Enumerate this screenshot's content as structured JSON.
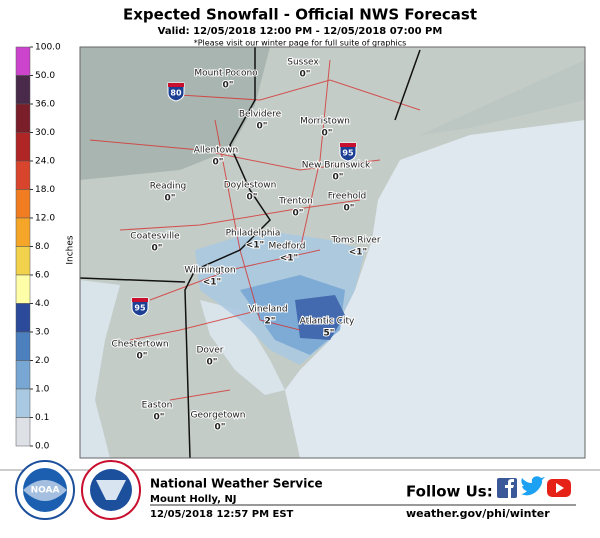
{
  "header": {
    "title": "Expected Snowfall - Official NWS Forecast",
    "valid": "Valid: 12/05/2018 12:00 PM - 12/05/2018 07:00 PM",
    "note": "*Please visit our winter page for full suite of graphics"
  },
  "legend": {
    "title": "Inches",
    "levels": [
      {
        "value": 100,
        "label": "100.0"
      },
      {
        "value": 50,
        "label": "50.0"
      },
      {
        "value": 36,
        "label": "36.0"
      },
      {
        "value": 30,
        "label": "30.0"
      },
      {
        "value": 24,
        "label": "24.0"
      },
      {
        "value": 18,
        "label": "18.0"
      },
      {
        "value": 12,
        "label": "12.0"
      },
      {
        "value": 8,
        "label": "8.0"
      },
      {
        "value": 6,
        "label": "6.0"
      },
      {
        "value": 4,
        "label": "4.0"
      },
      {
        "value": 3,
        "label": "3.0"
      },
      {
        "value": 2,
        "label": "2.0"
      },
      {
        "value": 1,
        "label": "1.0"
      },
      {
        "value": 0.1,
        "label": "0.1"
      },
      {
        "value": 0,
        "label": "0.0"
      }
    ],
    "colors": [
      "#cc44cc",
      "#4a2a4a",
      "#7a1f2a",
      "#b02525",
      "#d8452c",
      "#f07d22",
      "#f5a629",
      "#f2d24c",
      "#fefda8",
      "#2b4a9a",
      "#4b7fbd",
      "#78a7d4",
      "#a9c8e1",
      "#dde1e6"
    ]
  },
  "map": {
    "cities": [
      {
        "name": "Mount Pocono",
        "amount": "0\""
      },
      {
        "name": "Sussex",
        "amount": "0\""
      },
      {
        "name": "Belvidere",
        "amount": "0\""
      },
      {
        "name": "Morristown",
        "amount": "0\""
      },
      {
        "name": "Allentown",
        "amount": "0\""
      },
      {
        "name": "New Brunswick",
        "amount": "0\""
      },
      {
        "name": "Reading",
        "amount": "0\""
      },
      {
        "name": "Doylestown",
        "amount": "0\""
      },
      {
        "name": "Freehold",
        "amount": "0\""
      },
      {
        "name": "Trenton",
        "amount": "0\""
      },
      {
        "name": "Coatesville",
        "amount": "0\""
      },
      {
        "name": "Philadelphia",
        "amount": "<1\""
      },
      {
        "name": "Medford",
        "amount": "<1\""
      },
      {
        "name": "Toms River",
        "amount": "<1\""
      },
      {
        "name": "Wilmington",
        "amount": "<1\""
      },
      {
        "name": "Vineland",
        "amount": "2\""
      },
      {
        "name": "Atlantic City",
        "amount": "5\""
      },
      {
        "name": "Chestertown",
        "amount": "0\""
      },
      {
        "name": "Dover",
        "amount": "0\""
      },
      {
        "name": "Easton",
        "amount": "0\""
      },
      {
        "name": "Georgetown",
        "amount": "0\""
      }
    ],
    "highways": [
      "80",
      "95",
      "95"
    ]
  },
  "footer": {
    "agency": "National Weather Service",
    "office": "Mount Holly, NJ",
    "issued": "12/05/2018 12:57 PM EST",
    "follow": "Follow Us:",
    "url": "weather.gov/phi/winter",
    "noaa": "NOAA"
  }
}
